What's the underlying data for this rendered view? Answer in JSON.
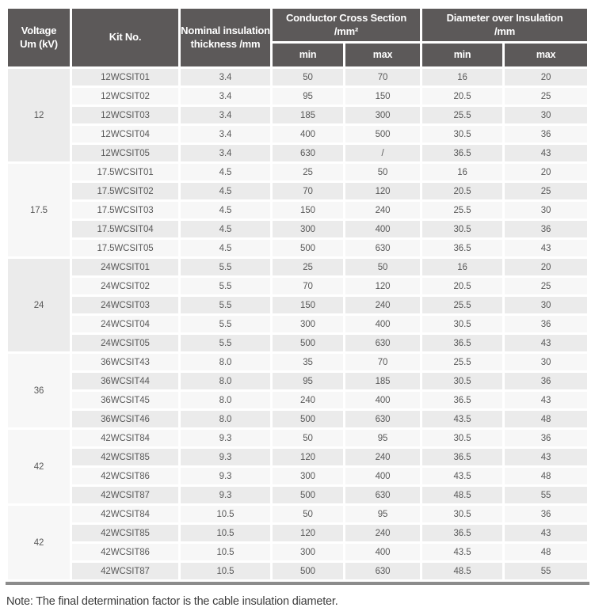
{
  "table": {
    "headers": {
      "voltage": "Voltage\nUm (kV)",
      "kit": "Kit No.",
      "thickness": "Nominal insulation\nthickness /mm",
      "conductor_cross_section": "Conductor Cross Section\n/mm²",
      "diameter_over_insulation": "Diameter over Insulation\n/mm",
      "min": "min",
      "max": "max"
    },
    "groups": [
      {
        "voltage": "12",
        "rows": [
          [
            "12WCSIT01",
            "3.4",
            "50",
            "70",
            "16",
            "20"
          ],
          [
            "12WCSIT02",
            "3.4",
            "95",
            "150",
            "20.5",
            "25"
          ],
          [
            "12WCSIT03",
            "3.4",
            "185",
            "300",
            "25.5",
            "30"
          ],
          [
            "12WCSIT04",
            "3.4",
            "400",
            "500",
            "30.5",
            "36"
          ],
          [
            "12WCSIT05",
            "3.4",
            "630",
            "/",
            "36.5",
            "43"
          ]
        ]
      },
      {
        "voltage": "17.5",
        "rows": [
          [
            "17.5WCSIT01",
            "4.5",
            "25",
            "50",
            "16",
            "20"
          ],
          [
            "17.5WCSIT02",
            "4.5",
            "70",
            "120",
            "20.5",
            "25"
          ],
          [
            "17.5WCSIT03",
            "4.5",
            "150",
            "240",
            "25.5",
            "30"
          ],
          [
            "17.5WCSIT04",
            "4.5",
            "300",
            "400",
            "30.5",
            "36"
          ],
          [
            "17.5WCSIT05",
            "4.5",
            "500",
            "630",
            "36.5",
            "43"
          ]
        ]
      },
      {
        "voltage": "24",
        "rows": [
          [
            "24WCSIT01",
            "5.5",
            "25",
            "50",
            "16",
            "20"
          ],
          [
            "24WCSIT02",
            "5.5",
            "70",
            "120",
            "20.5",
            "25"
          ],
          [
            "24WCSIT03",
            "5.5",
            "150",
            "240",
            "25.5",
            "30"
          ],
          [
            "24WCSIT04",
            "5.5",
            "300",
            "400",
            "30.5",
            "36"
          ],
          [
            "24WCSIT05",
            "5.5",
            "500",
            "630",
            "36.5",
            "43"
          ]
        ]
      },
      {
        "voltage": "36",
        "rows": [
          [
            "36WCSIT43",
            "8.0",
            "35",
            "70",
            "25.5",
            "30"
          ],
          [
            "36WCSIT44",
            "8.0",
            "95",
            "185",
            "30.5",
            "36"
          ],
          [
            "36WCSIT45",
            "8.0",
            "240",
            "400",
            "36.5",
            "43"
          ],
          [
            "36WCSIT46",
            "8.0",
            "500",
            "630",
            "43.5",
            "48"
          ]
        ]
      },
      {
        "voltage": "42",
        "rows": [
          [
            "42WCSIT84",
            "9.3",
            "50",
            "95",
            "30.5",
            "36"
          ],
          [
            "42WCSIT85",
            "9.3",
            "120",
            "240",
            "36.5",
            "43"
          ],
          [
            "42WCSIT86",
            "9.3",
            "300",
            "400",
            "43.5",
            "48"
          ],
          [
            "42WCSIT87",
            "9.3",
            "500",
            "630",
            "48.5",
            "55"
          ]
        ]
      },
      {
        "voltage": "42",
        "rows": [
          [
            "42WCSIT84",
            "10.5",
            "50",
            "95",
            "30.5",
            "36"
          ],
          [
            "42WCSIT85",
            "10.5",
            "120",
            "240",
            "36.5",
            "43"
          ],
          [
            "42WCSIT86",
            "10.5",
            "300",
            "400",
            "43.5",
            "48"
          ],
          [
            "42WCSIT87",
            "10.5",
            "500",
            "630",
            "48.5",
            "55"
          ]
        ]
      }
    ]
  },
  "note": "Note: The final determination factor is the cable insulation diameter.",
  "colors": {
    "header_bg": "#5c5959",
    "row_gray": "#ebebeb",
    "row_light": "#f7f7f7",
    "bottom_border": "#8c8c8c",
    "header_text": "#ffffff",
    "cell_text": "#595959",
    "note_text": "#3d3d3d"
  }
}
